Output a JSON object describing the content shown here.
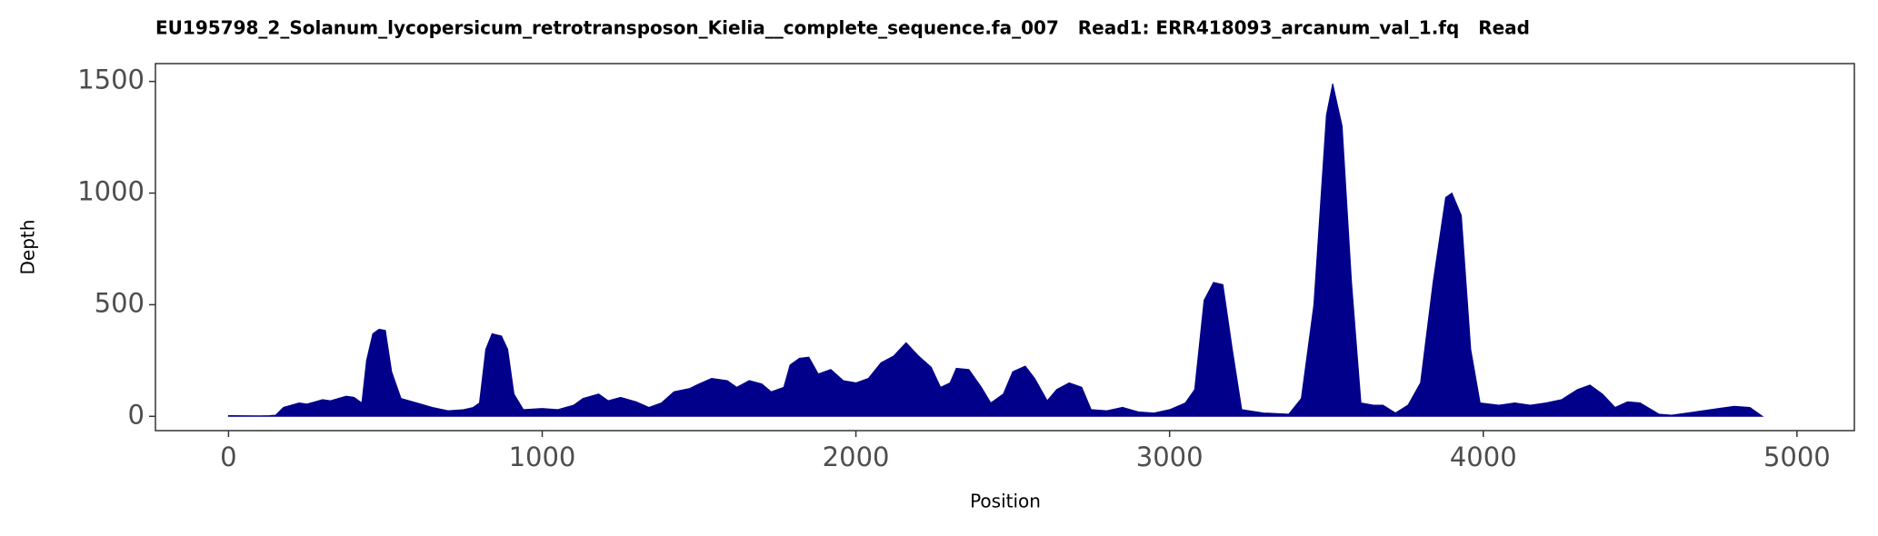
{
  "chart_data": {
    "type": "area",
    "title": "EU195798_2_Solanum_lycopersicum_retrotransposon_Kielia__complete_sequence.fa_007   Read1: ERR418093_arcanum_val_1.fq   Read",
    "x_label": "Position",
    "y_label": "Depth",
    "color": "#00008b",
    "xlim": [
      -233,
      5183
    ],
    "ylim": [
      -64,
      1580
    ],
    "xticks": [
      0,
      1000,
      2000,
      3000,
      4000,
      5000
    ],
    "yticks": [
      0,
      500,
      1000,
      1500
    ],
    "x": [
      0,
      100,
      130,
      150,
      175,
      200,
      225,
      250,
      275,
      300,
      325,
      350,
      375,
      400,
      425,
      440,
      460,
      480,
      500,
      520,
      550,
      600,
      650,
      700,
      750,
      780,
      800,
      820,
      840,
      870,
      890,
      910,
      940,
      1000,
      1050,
      1100,
      1130,
      1180,
      1210,
      1250,
      1300,
      1340,
      1380,
      1420,
      1470,
      1500,
      1540,
      1590,
      1620,
      1660,
      1700,
      1730,
      1770,
      1790,
      1820,
      1850,
      1880,
      1920,
      1960,
      2000,
      2040,
      2080,
      2120,
      2160,
      2200,
      2240,
      2270,
      2300,
      2320,
      2360,
      2400,
      2430,
      2470,
      2500,
      2540,
      2570,
      2610,
      2640,
      2680,
      2720,
      2750,
      2800,
      2850,
      2900,
      2950,
      3000,
      3050,
      3080,
      3110,
      3140,
      3170,
      3200,
      3230,
      3300,
      3380,
      3420,
      3460,
      3500,
      3520,
      3550,
      3580,
      3610,
      3650,
      3680,
      3720,
      3760,
      3800,
      3840,
      3880,
      3900,
      3930,
      3960,
      3990,
      4050,
      4100,
      4150,
      4200,
      4250,
      4300,
      4340,
      4380,
      4420,
      4460,
      4500,
      4560,
      4600,
      4650,
      4700,
      4750,
      4800,
      4850,
      4880,
      4890
    ],
    "values": [
      3,
      2,
      3,
      5,
      40,
      50,
      60,
      55,
      65,
      75,
      70,
      80,
      90,
      85,
      60,
      250,
      370,
      390,
      385,
      200,
      80,
      60,
      40,
      25,
      30,
      40,
      60,
      300,
      370,
      360,
      300,
      100,
      30,
      35,
      30,
      50,
      80,
      100,
      70,
      85,
      65,
      40,
      60,
      110,
      125,
      145,
      170,
      160,
      130,
      160,
      145,
      110,
      130,
      230,
      260,
      265,
      190,
      210,
      160,
      150,
      170,
      240,
      270,
      330,
      270,
      220,
      130,
      150,
      215,
      210,
      130,
      60,
      100,
      200,
      225,
      170,
      70,
      120,
      150,
      130,
      30,
      25,
      40,
      20,
      15,
      30,
      60,
      120,
      520,
      600,
      590,
      300,
      30,
      15,
      10,
      80,
      500,
      1350,
      1490,
      1300,
      600,
      60,
      50,
      50,
      15,
      50,
      150,
      600,
      980,
      1000,
      900,
      300,
      60,
      50,
      60,
      50,
      60,
      75,
      120,
      140,
      100,
      40,
      65,
      60,
      10,
      5,
      15,
      25,
      35,
      45,
      40,
      10,
      0
    ],
    "grid": false
  }
}
